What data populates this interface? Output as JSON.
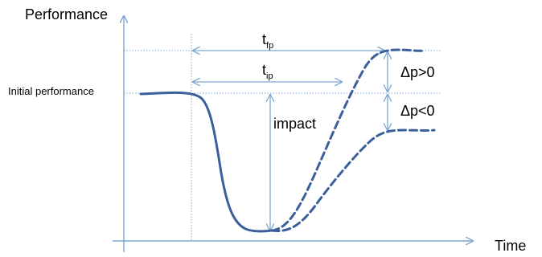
{
  "axes": {
    "y_label": "Performance",
    "x_label": "Time"
  },
  "labels": {
    "initial_performance": "Initial performance",
    "impact": "impact",
    "t_fp_main": "t",
    "t_fp_sub": "fp",
    "t_ip_main": "t",
    "t_ip_sub": "ip",
    "delta_pos": "Δp>0",
    "delta_neg": "Δp<0"
  },
  "colors": {
    "axis": "#7fa6d1",
    "curve": "#3a5f9a",
    "guide": "#7fa6d1",
    "text": "#000000"
  }
}
